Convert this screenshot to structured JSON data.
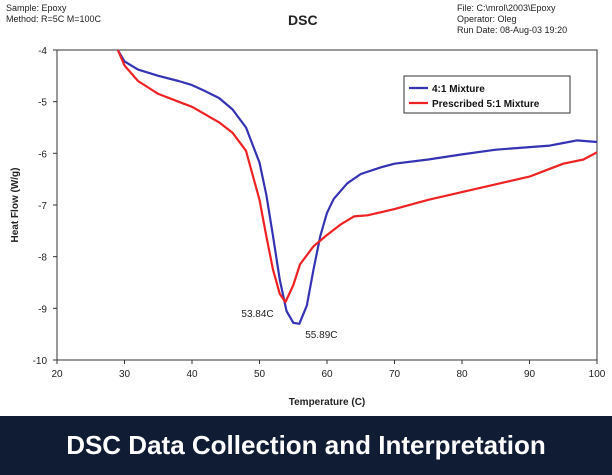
{
  "header": {
    "left_lines": [
      "Sample: Epoxy",
      "Method: R=5C M=100C"
    ],
    "right_lines": [
      "File: C:\\mrol\\2003\\Epoxy",
      "Operator: Oleg",
      "Run Date: 08-Aug-03 19:20"
    ]
  },
  "banner": {
    "text": "DSC Data Collection and Interpretation"
  },
  "colors": {
    "series1": "#3333b3",
    "series2": "#ee2222",
    "banner_bg": "#0f1c33"
  },
  "chart_data": {
    "type": "line",
    "title": "DSC",
    "xlabel": "Temperature (C)",
    "ylabel": "Heat Flow (W/g)",
    "xlim": [
      20,
      100
    ],
    "ylim": [
      -10,
      -4
    ],
    "xticks": [
      20,
      30,
      40,
      50,
      60,
      70,
      80,
      90,
      100
    ],
    "yticks": [
      -4,
      -5,
      -6,
      -7,
      -8,
      -9,
      -10
    ],
    "grid": false,
    "legend_position": "top-right",
    "series": [
      {
        "name": "4:1 Mixture",
        "color": "#3333b3",
        "x": [
          29,
          30,
          32,
          35,
          38,
          40,
          42,
          44,
          46,
          48,
          50,
          51,
          52,
          53,
          54,
          55,
          55.89,
          57,
          58,
          59,
          60,
          61,
          63,
          65,
          68,
          70,
          75,
          80,
          85,
          90,
          93,
          95,
          97,
          100
        ],
        "y": [
          -4.0,
          -4.22,
          -4.38,
          -4.5,
          -4.6,
          -4.68,
          -4.8,
          -4.93,
          -5.15,
          -5.5,
          -6.18,
          -6.8,
          -7.6,
          -8.45,
          -9.05,
          -9.28,
          -9.3,
          -8.95,
          -8.25,
          -7.6,
          -7.15,
          -6.88,
          -6.58,
          -6.4,
          -6.27,
          -6.2,
          -6.12,
          -6.02,
          -5.93,
          -5.88,
          -5.85,
          -5.8,
          -5.75,
          -5.78
        ]
      },
      {
        "name": "Prescribed 5:1 Mixture",
        "color": "#ee2222",
        "x": [
          29,
          30,
          32,
          35,
          38,
          40,
          42,
          44,
          46,
          48,
          50,
          51,
          52,
          53,
          53.84,
          55,
          56,
          58,
          60,
          62,
          64,
          66,
          70,
          75,
          80,
          85,
          90,
          93,
          95,
          98,
          100
        ],
        "y": [
          -4.0,
          -4.3,
          -4.6,
          -4.85,
          -5.0,
          -5.1,
          -5.25,
          -5.4,
          -5.6,
          -5.95,
          -6.9,
          -7.6,
          -8.25,
          -8.72,
          -8.88,
          -8.55,
          -8.15,
          -7.8,
          -7.58,
          -7.38,
          -7.22,
          -7.2,
          -7.08,
          -6.9,
          -6.75,
          -6.6,
          -6.45,
          -6.3,
          -6.2,
          -6.12,
          -5.98
        ]
      }
    ],
    "annotations": [
      {
        "text": "53.84C",
        "x": 53.84,
        "y": -8.88,
        "series": "Prescribed 5:1 Mixture"
      },
      {
        "text": "55.89C",
        "x": 55.89,
        "y": -9.3,
        "series": "4:1 Mixture"
      }
    ]
  }
}
